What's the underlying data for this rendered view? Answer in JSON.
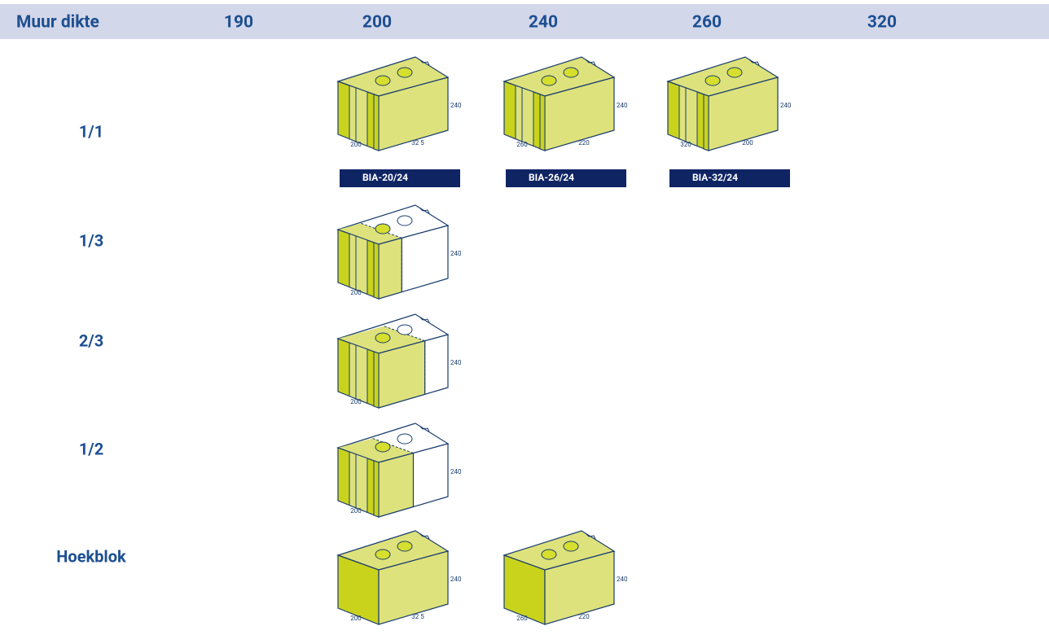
{
  "header": {
    "label": "Muur dikte",
    "columns": [
      "190",
      "200",
      "240",
      "260",
      "320"
    ]
  },
  "rows": [
    {
      "label": "1/1",
      "cells": [
        null,
        {
          "height": "240",
          "depth": "200",
          "length": "32 5",
          "tag": "BIA-20/24"
        },
        {
          "height": "240",
          "depth": "260",
          "length": "220",
          "tag": "BIA-26/24"
        },
        {
          "height": "240",
          "depth": "320",
          "length": "200",
          "tag": "BIA-32/24"
        },
        null
      ]
    },
    {
      "label": "1/3",
      "cells": [
        null,
        {
          "height": "240",
          "depth": "200"
        },
        null,
        null,
        null
      ]
    },
    {
      "label": "2/3",
      "cells": [
        null,
        {
          "height": "240",
          "depth": "200"
        },
        null,
        null,
        null
      ]
    },
    {
      "label": "1/2",
      "cells": [
        null,
        {
          "height": "240",
          "depth": "200"
        },
        null,
        null,
        null
      ]
    },
    {
      "label": "Hoekblok",
      "cells": [
        null,
        {
          "height": "240",
          "depth": "200",
          "length": "32 5"
        },
        {
          "height": "240",
          "depth": "260",
          "length": "220"
        },
        null,
        null
      ]
    }
  ]
}
